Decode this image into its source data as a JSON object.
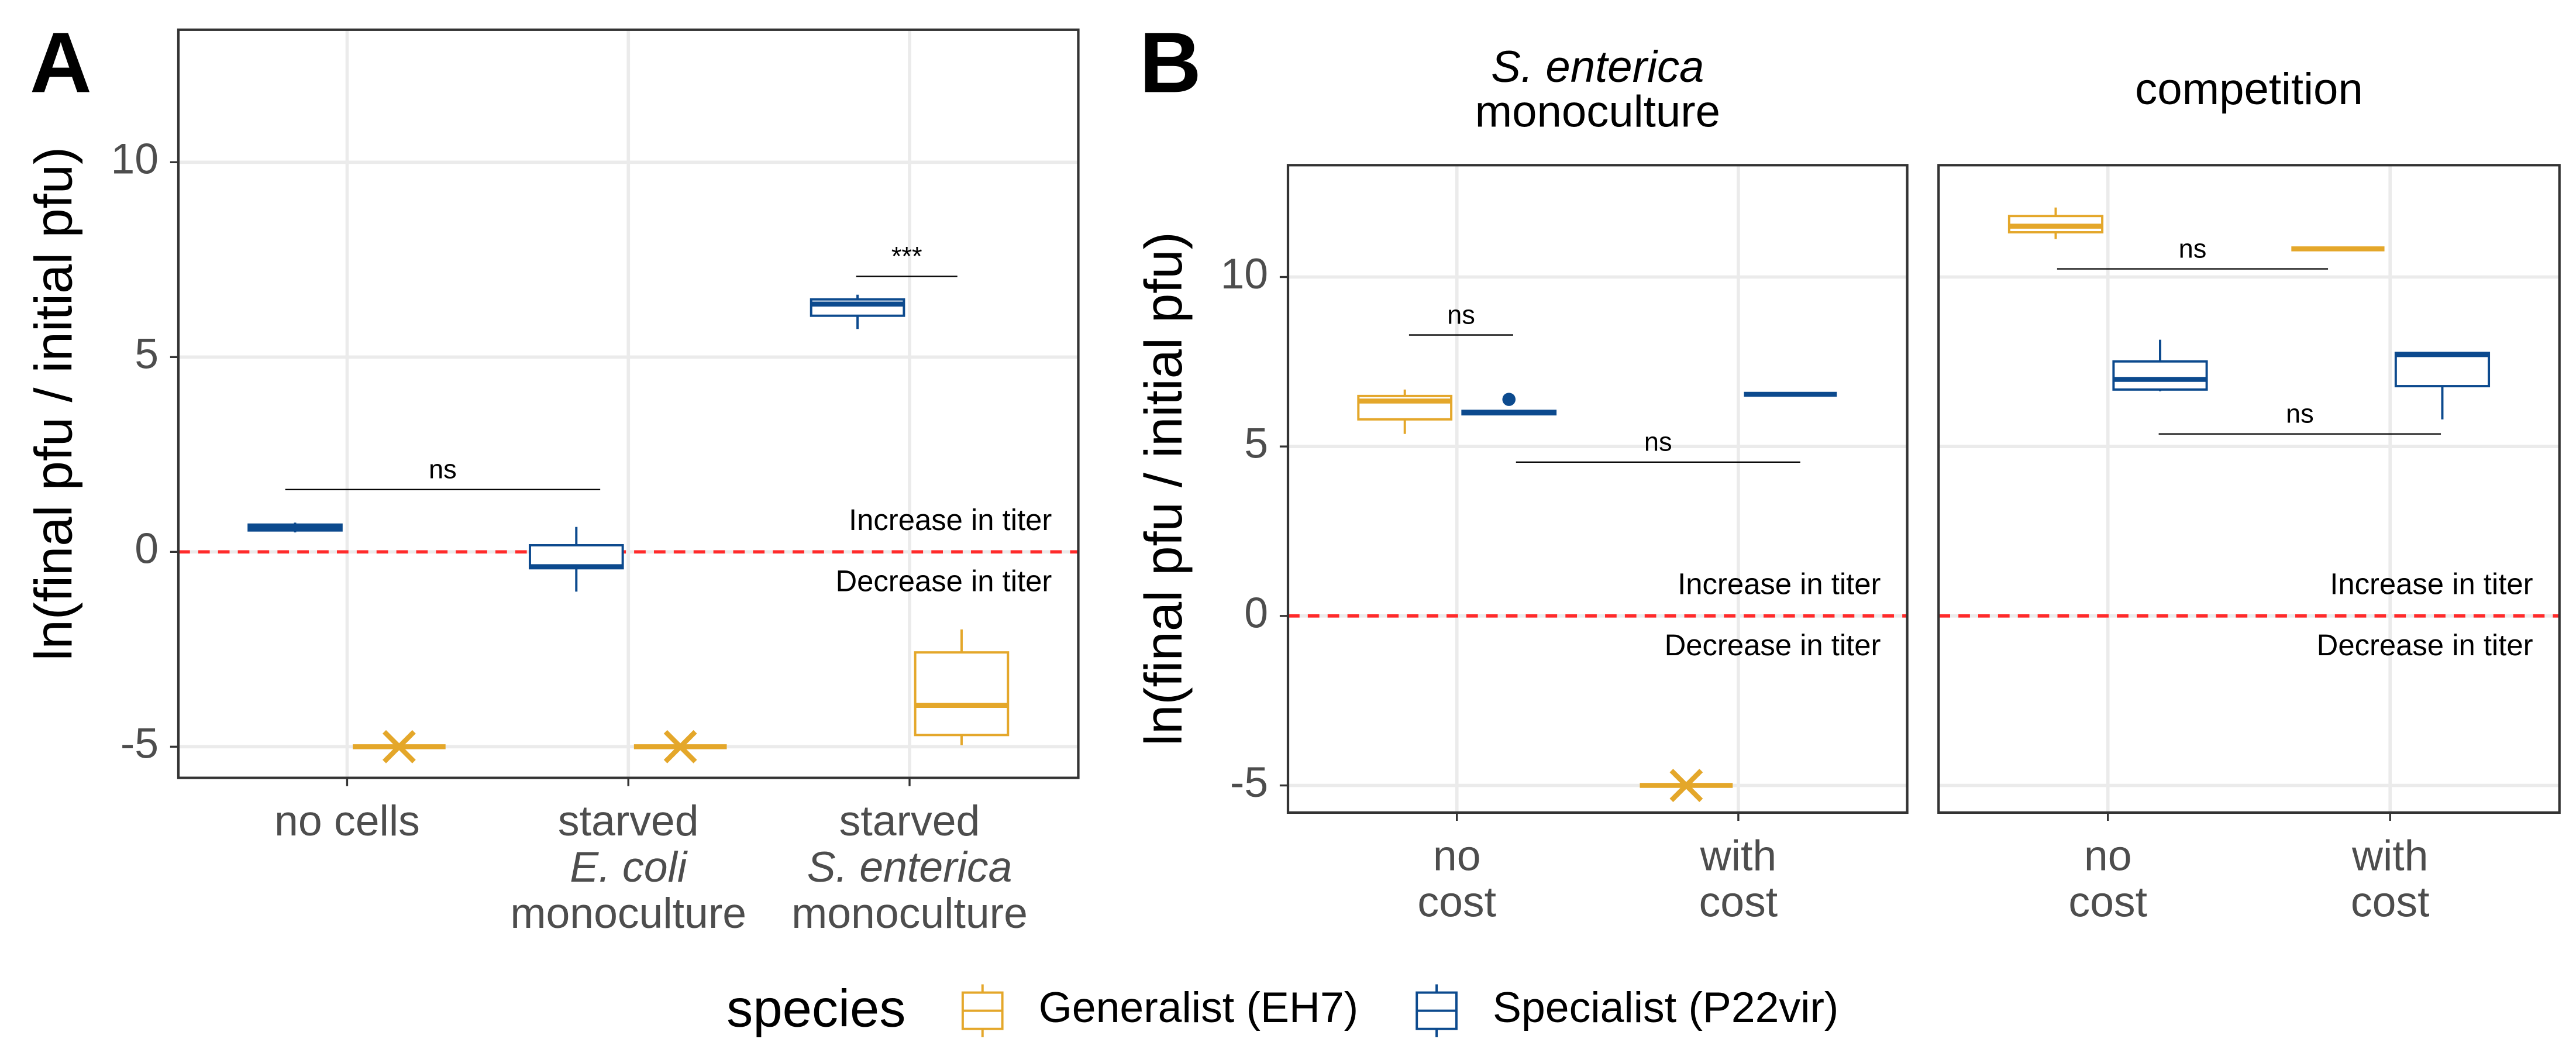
{
  "chart_data": [
    {
      "type": "box",
      "panel_label": "A",
      "ylabel": "ln(final pfu / initial pfu)",
      "categories": [
        [
          "no cells"
        ],
        [
          "starved",
          "E. coli",
          "monoculture"
        ],
        [
          "starved",
          "S. enterica",
          "monoculture"
        ]
      ],
      "ylim": [
        -5.8,
        13.4
      ],
      "yticks": [
        -5,
        0,
        5,
        10
      ],
      "tick_labels": true,
      "grid": true,
      "hline": {
        "value": 0,
        "color": "#ff2a2a"
      },
      "hline_labels": {
        "above": "Increase in titer",
        "below": "Decrease in titer"
      },
      "series": [
        {
          "color": "#0c4a8e",
          "values": [
            {
              "min": 0.5,
              "q1": 0.55,
              "median": 0.62,
              "q3": 0.7,
              "max": 0.75
            },
            {
              "min": -1.02,
              "q1": -0.42,
              "median": -0.38,
              "q3": 0.17,
              "max": 0.64
            },
            {
              "min": 5.72,
              "q1": 6.06,
              "median": 6.36,
              "q3": 6.48,
              "max": 6.6
            }
          ]
        },
        {
          "color": "#e4a72a",
          "values": [
            {
              "min": -5,
              "q1": -5,
              "median": -5,
              "q3": -5,
              "max": -5,
              "crosses": [
                -5
              ]
            },
            {
              "min": -5,
              "q1": -5,
              "median": -5,
              "q3": -5,
              "max": -5,
              "crosses": [
                -5
              ]
            },
            {
              "min": -4.96,
              "q1": -4.7,
              "median": -3.94,
              "q3": -2.58,
              "max": -1.99
            }
          ]
        }
      ],
      "brackets": [
        {
          "label": "ns",
          "y": 1.6,
          "xrange": [
            -0.22,
            0.9
          ]
        },
        {
          "label": "***",
          "y": 7.07,
          "xrange": [
            1.81,
            2.17
          ]
        }
      ]
    },
    {
      "type": "box",
      "panel_label": "B",
      "title": [
        "S. enterica",
        "monoculture"
      ],
      "ylabel": "ln(final pfu / initial pfu)",
      "categories": [
        [
          "no",
          "cost"
        ],
        [
          "with",
          "cost"
        ]
      ],
      "ylim": [
        -5.8,
        13.3
      ],
      "yticks": [
        -5,
        0,
        5,
        10
      ],
      "tick_labels": true,
      "grid": true,
      "hline": {
        "value": 0,
        "color": "#ff2a2a"
      },
      "hline_labels": {
        "above": "Increase in titer",
        "below": "Decrease in titer"
      },
      "series": [
        {
          "color": "#e4a72a",
          "values": [
            {
              "min": 5.37,
              "q1": 5.8,
              "median": 6.34,
              "q3": 6.49,
              "max": 6.68
            },
            {
              "min": -5,
              "q1": -5,
              "median": -5,
              "q3": -5,
              "max": -5,
              "crosses": [
                -5
              ]
            }
          ]
        },
        {
          "color": "#0c4a8e",
          "values": [
            {
              "min": 5.95,
              "q1": 5.95,
              "median": 6.0,
              "q3": 6.05,
              "max": 6.05,
              "outliers": [
                6.39
              ]
            },
            {
              "min": 6.54,
              "q1": 6.54,
              "median": 6.54,
              "q3": 6.54,
              "max": 6.54
            }
          ]
        }
      ],
      "brackets": [
        {
          "label": "ns",
          "y": 8.29,
          "xrange": [
            -0.17,
            0.2
          ]
        },
        {
          "label": "ns",
          "y": 4.54,
          "xrange": [
            0.21,
            1.22
          ]
        }
      ]
    },
    {
      "type": "box",
      "title": [
        "competition"
      ],
      "categories": [
        [
          "no",
          "cost"
        ],
        [
          "with",
          "cost"
        ]
      ],
      "ylim": [
        -5.8,
        13.3
      ],
      "yticks": [
        -5,
        0,
        5,
        10
      ],
      "tick_labels": false,
      "grid": true,
      "hline": {
        "value": 0,
        "color": "#ff2a2a"
      },
      "hline_labels": {
        "above": "Increase in titer",
        "below": "Decrease in titer"
      },
      "series": [
        {
          "color": "#e4a72a",
          "values": [
            {
              "min": 11.12,
              "q1": 11.32,
              "median": 11.5,
              "q3": 11.8,
              "max": 12.05
            },
            {
              "min": 10.83,
              "q1": 10.83,
              "median": 10.83,
              "q3": 10.83,
              "max": 10.83
            }
          ]
        },
        {
          "color": "#0c4a8e",
          "values": [
            {
              "min": 6.63,
              "q1": 6.68,
              "median": 6.98,
              "q3": 7.51,
              "max": 8.15
            },
            {
              "min": 5.8,
              "q1": 6.78,
              "median": 7.71,
              "q3": 7.76,
              "max": 7.76
            }
          ]
        }
      ],
      "brackets": [
        {
          "label": "ns",
          "y": 10.24,
          "xrange": [
            -0.18,
            0.78
          ]
        },
        {
          "label": "ns",
          "y": 5.37,
          "xrange": [
            0.18,
            1.18
          ]
        }
      ]
    }
  ],
  "legend": {
    "title": "species",
    "entries": [
      {
        "name": "Generalist (EH7)",
        "color": "#e4a72a"
      },
      {
        "name": "Specialist (P22vir)",
        "color": "#0c4a8e"
      }
    ]
  }
}
